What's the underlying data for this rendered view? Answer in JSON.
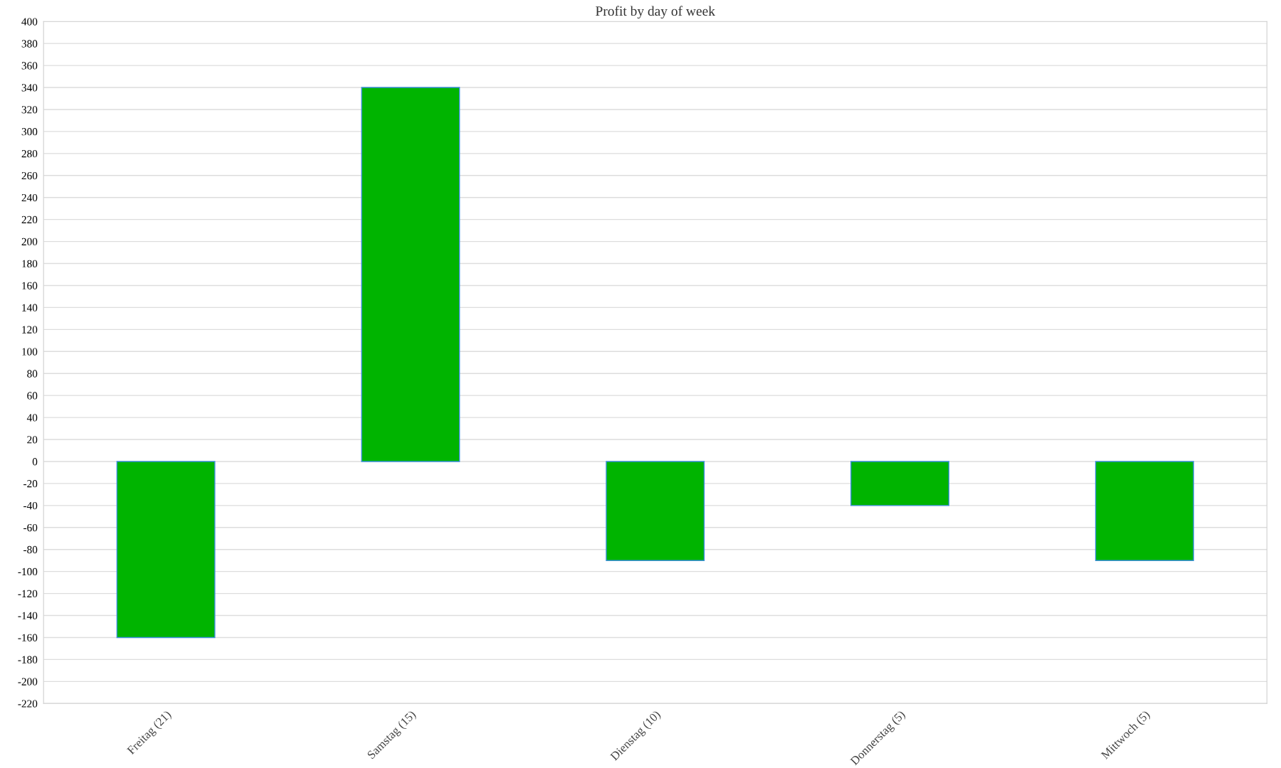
{
  "chart_data": {
    "type": "bar",
    "title": "Profit by day of week",
    "categories": [
      "Freitag (21)",
      "Samstag (15)",
      "Dienstag (10)",
      "Donnerstag (5)",
      "Mittwoch (5)"
    ],
    "series": [
      {
        "color": "#00b400",
        "values": [
          -160,
          340,
          -90,
          -40,
          -90
        ]
      }
    ],
    "ylim": [
      -220,
      400
    ],
    "yticks": [
      -220,
      -200,
      -180,
      -160,
      -140,
      -120,
      -100,
      -80,
      -60,
      -40,
      -20,
      0,
      20,
      40,
      60,
      80,
      100,
      120,
      140,
      160,
      180,
      200,
      220,
      240,
      260,
      280,
      300,
      320,
      340,
      360,
      380,
      400
    ],
    "grid": "y"
  }
}
